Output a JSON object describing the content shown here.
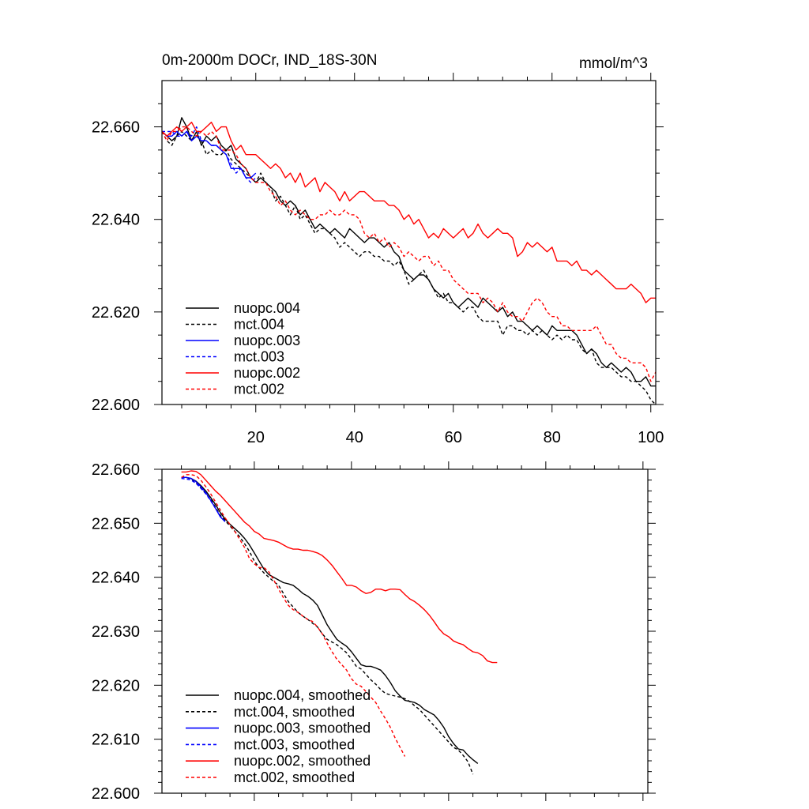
{
  "chart_data": [
    {
      "type": "line",
      "title": "0m-2000m DOCr, IND_18S-30N",
      "units": "mmol/m^3",
      "xlim": [
        1,
        101
      ],
      "ylim": [
        22.6,
        22.67
      ],
      "x_major_ticks": [
        20,
        40,
        60,
        80,
        100
      ],
      "x_minor_ticks": [
        5,
        10,
        15,
        25,
        30,
        35,
        45,
        50,
        55,
        65,
        70,
        75,
        85,
        90,
        95
      ],
      "xtick_labels": [
        "20",
        "40",
        "60",
        "80",
        "100"
      ],
      "y_major_ticks": [
        22.6,
        22.62,
        22.64,
        22.66
      ],
      "y_minor_ticks": [
        22.605,
        22.61,
        22.615,
        22.625,
        22.63,
        22.635,
        22.645,
        22.65,
        22.655,
        22.665
      ],
      "ytick_labels": [
        "22.600",
        "22.620",
        "22.640",
        "22.660"
      ],
      "legend_position": "bottom-left",
      "series": [
        {
          "name": "nuopc.004",
          "color": "#000000",
          "dash": "solid",
          "start": 1,
          "values": [
            22.659,
            22.658,
            22.657,
            22.658,
            22.662,
            22.66,
            22.657,
            22.659,
            22.656,
            22.658,
            22.657,
            22.658,
            22.656,
            22.655,
            22.656,
            22.653,
            22.652,
            22.651,
            22.649,
            22.648,
            22.649,
            22.648,
            22.647,
            22.646,
            22.644,
            22.643,
            22.644,
            22.643,
            22.641,
            22.642,
            22.64,
            22.638,
            22.639,
            22.638,
            22.637,
            22.638,
            22.637,
            22.636,
            22.638,
            22.637,
            22.636,
            22.635,
            22.636,
            22.636,
            22.635,
            22.634,
            22.635,
            22.633,
            22.632,
            22.629,
            22.628,
            22.627,
            22.628,
            22.628,
            22.627,
            22.625,
            22.624,
            22.623,
            22.624,
            22.622,
            22.621,
            22.622,
            22.623,
            22.622,
            22.621,
            22.623,
            22.622,
            22.621,
            22.62,
            22.621,
            22.619,
            22.62,
            22.618,
            22.618,
            22.617,
            22.616,
            22.617,
            22.616,
            22.615,
            22.617,
            22.616,
            22.616,
            22.616,
            22.616,
            22.615,
            22.613,
            22.611,
            22.612,
            22.611,
            22.609,
            22.608,
            22.609,
            22.608,
            22.607,
            22.608,
            22.607,
            22.605,
            22.605,
            22.606,
            22.604,
            22.604
          ]
        },
        {
          "name": "mct.004",
          "color": "#000000",
          "dash": "dashed",
          "start": 1,
          "values": [
            22.659,
            22.657,
            22.656,
            22.658,
            22.659,
            22.658,
            22.657,
            22.658,
            22.657,
            22.654,
            22.655,
            22.654,
            22.654,
            22.655,
            22.653,
            22.652,
            22.651,
            22.65,
            22.649,
            22.648,
            22.65,
            22.648,
            22.647,
            22.644,
            22.645,
            22.643,
            22.641,
            22.643,
            22.64,
            22.641,
            22.639,
            22.637,
            22.638,
            22.638,
            22.637,
            22.636,
            22.634,
            22.635,
            22.634,
            22.633,
            22.632,
            22.633,
            22.633,
            22.632,
            22.632,
            22.631,
            22.631,
            22.63,
            22.631,
            22.629,
            22.626,
            22.627,
            22.628,
            22.629,
            22.627,
            22.625,
            22.623,
            22.624,
            22.622,
            22.622,
            22.621,
            22.62,
            22.621,
            22.621,
            22.619,
            22.618,
            22.618,
            22.618,
            22.618,
            22.615,
            22.617,
            22.617,
            22.616,
            22.616,
            22.615,
            22.616,
            22.615,
            22.616,
            22.615,
            22.614,
            22.615,
            22.614,
            22.615,
            22.614,
            22.614,
            22.612,
            22.611,
            22.612,
            22.609,
            22.608,
            22.608,
            22.608,
            22.607,
            22.606,
            22.606,
            22.605,
            22.605,
            22.604,
            22.603,
            22.601,
            22.6
          ]
        },
        {
          "name": "nuopc.003",
          "color": "#0000ff",
          "dash": "solid",
          "start": 1,
          "values": [
            22.659,
            22.658,
            22.658,
            22.659,
            22.658,
            22.659,
            22.657,
            22.658,
            22.657,
            22.657,
            22.656,
            22.656,
            22.655,
            22.654,
            22.651,
            22.651,
            22.651,
            22.649,
            22.649,
            22.65
          ]
        },
        {
          "name": "mct.003",
          "color": "#0000ff",
          "dash": "dashed",
          "start": 1,
          "values": [
            22.659,
            22.659,
            22.659,
            22.658,
            22.658,
            22.659,
            22.658,
            22.66,
            22.657,
            22.657,
            22.656,
            22.656,
            22.655,
            22.654,
            22.652,
            22.65,
            22.651,
            22.649,
            22.648,
            22.649
          ]
        },
        {
          "name": "nuopc.002",
          "color": "#ff0000",
          "dash": "solid",
          "start": 1,
          "values": [
            22.659,
            22.658,
            22.659,
            22.66,
            22.659,
            22.66,
            22.661,
            22.659,
            22.659,
            22.66,
            22.661,
            22.659,
            22.66,
            22.66,
            22.657,
            22.655,
            22.656,
            22.654,
            22.654,
            22.654,
            22.653,
            22.652,
            22.651,
            22.652,
            22.651,
            22.649,
            22.65,
            22.648,
            22.65,
            22.647,
            22.648,
            22.649,
            22.646,
            22.648,
            22.647,
            22.646,
            22.644,
            22.646,
            22.644,
            22.645,
            22.646,
            22.646,
            22.645,
            22.644,
            22.644,
            22.644,
            22.643,
            22.643,
            22.642,
            22.64,
            22.641,
            22.639,
            22.64,
            22.638,
            22.636,
            22.637,
            22.636,
            22.638,
            22.637,
            22.636,
            22.637,
            22.638,
            22.636,
            22.637,
            22.639,
            22.637,
            22.636,
            22.637,
            22.638,
            22.637,
            22.637,
            22.636,
            22.632,
            22.633,
            22.635,
            22.634,
            22.635,
            22.634,
            22.633,
            22.634,
            22.631,
            22.631,
            22.631,
            22.63,
            22.631,
            22.629,
            22.629,
            22.628,
            22.629,
            22.628,
            22.627,
            22.626,
            22.625,
            22.625,
            22.625,
            22.626,
            22.625,
            22.624,
            22.622,
            22.623,
            22.623
          ]
        },
        {
          "name": "mct.002",
          "color": "#ff0000",
          "dash": "dashed",
          "start": 1,
          "values": [
            22.659,
            22.657,
            22.659,
            22.659,
            22.66,
            22.66,
            22.659,
            22.658,
            22.659,
            22.658,
            22.659,
            22.658,
            22.655,
            22.655,
            22.655,
            22.654,
            22.652,
            22.651,
            22.649,
            22.648,
            22.648,
            22.648,
            22.646,
            22.645,
            22.643,
            22.644,
            22.642,
            22.641,
            22.642,
            22.641,
            22.64,
            22.64,
            22.641,
            22.641,
            22.642,
            22.641,
            22.641,
            22.642,
            22.641,
            22.641,
            22.64,
            22.637,
            22.636,
            22.637,
            22.635,
            22.636,
            22.634,
            22.635,
            22.634,
            22.632,
            22.633,
            22.632,
            22.631,
            22.632,
            22.632,
            22.63,
            22.631,
            22.629,
            22.629,
            22.627,
            22.626,
            22.625,
            22.624,
            22.624,
            22.624,
            22.622,
            22.623,
            22.622,
            22.62,
            22.622,
            22.62,
            22.619,
            22.619,
            22.618,
            22.62,
            22.622,
            22.623,
            22.622,
            22.62,
            22.619,
            22.619,
            22.617,
            22.617,
            22.616,
            22.616,
            22.616,
            22.616,
            22.616,
            22.617,
            22.615,
            22.613,
            22.613,
            22.611,
            22.61,
            22.61,
            22.609,
            22.609,
            22.609,
            22.608,
            22.605,
            22.607
          ]
        }
      ]
    },
    {
      "type": "line",
      "xlim": [
        1,
        101
      ],
      "ylim": [
        22.6,
        22.66
      ],
      "x_major_ticks": [
        20,
        40,
        60,
        80,
        100
      ],
      "x_minor_ticks": [
        5,
        10,
        15,
        25,
        30,
        35,
        45,
        50,
        55,
        65,
        70,
        75,
        85,
        90,
        95
      ],
      "y_major_ticks": [
        22.6,
        22.61,
        22.62,
        22.63,
        22.64,
        22.65,
        22.66
      ],
      "y_minor_ticks": [
        22.602,
        22.604,
        22.606,
        22.608,
        22.612,
        22.614,
        22.616,
        22.618,
        22.622,
        22.624,
        22.626,
        22.628,
        22.632,
        22.634,
        22.636,
        22.638,
        22.642,
        22.644,
        22.646,
        22.648,
        22.652,
        22.654,
        22.656,
        22.658
      ],
      "ytick_labels": [
        "22.600",
        "22.610",
        "22.620",
        "22.630",
        "22.640",
        "22.650",
        "22.660"
      ],
      "legend_position": "bottom-left",
      "series": [
        {
          "name": "nuopc.004, smoothed",
          "color": "#000000",
          "dash": "solid",
          "start": 5,
          "values": [
            22.6585,
            22.6585,
            22.6583,
            22.6578,
            22.657,
            22.656,
            22.6548,
            22.6535,
            22.652,
            22.6508,
            22.6498,
            22.649,
            22.6482,
            22.6472,
            22.646,
            22.6445,
            22.643,
            22.6415,
            22.6405,
            22.64,
            22.6395,
            22.639,
            22.6388,
            22.6385,
            22.6378,
            22.637,
            22.6365,
            22.6358,
            22.6348,
            22.633,
            22.6312,
            22.6298,
            22.6285,
            22.6278,
            22.6272,
            22.6262,
            22.625,
            22.6238,
            22.6235,
            22.6235,
            22.6232,
            22.6228,
            22.6218,
            22.6205,
            22.619,
            22.618,
            22.6172,
            22.617,
            22.6168,
            22.6163,
            22.6155,
            22.615,
            22.6145,
            22.6135,
            22.6122,
            22.6105,
            22.6092,
            22.6082,
            22.608,
            22.607,
            22.6062,
            22.6055
          ]
        },
        {
          "name": "mct.004, smoothed",
          "color": "#000000",
          "dash": "dashed",
          "start": 5,
          "values": [
            22.6585,
            22.6585,
            22.6582,
            22.6575,
            22.6565,
            22.6555,
            22.6545,
            22.653,
            22.6515,
            22.6505,
            22.6495,
            22.6485,
            22.6475,
            22.6462,
            22.6448,
            22.643,
            22.6418,
            22.6408,
            22.64,
            22.6392,
            22.6385,
            22.637,
            22.6355,
            22.6345,
            22.6335,
            22.6328,
            22.6322,
            22.6315,
            22.6308,
            22.6295,
            22.6285,
            22.628,
            22.6275,
            22.6268,
            22.626,
            22.6248,
            22.6235,
            22.623,
            22.622,
            22.621,
            22.6202,
            22.6192,
            22.6185,
            22.6182,
            22.618,
            22.6178,
            22.6175,
            22.617,
            22.6162,
            22.6155,
            22.6145,
            22.6135,
            22.6125,
            22.6115,
            22.6105,
            22.6095,
            22.6085,
            22.608,
            22.607,
            22.6058,
            22.6035
          ]
        },
        {
          "name": "nuopc.003, smoothed",
          "color": "#0000ff",
          "dash": "solid",
          "start": 5,
          "values": [
            22.6585,
            22.6585,
            22.6583,
            22.6577,
            22.6568,
            22.6557,
            22.6543,
            22.6528,
            22.6512,
            22.6503
          ]
        },
        {
          "name": "mct.003, smoothed",
          "color": "#0000ff",
          "dash": "dashed",
          "start": 5,
          "values": [
            22.6583,
            22.6582,
            22.658,
            22.6574,
            22.6565,
            22.6555,
            22.6542,
            22.6528,
            22.6513,
            22.6503
          ]
        },
        {
          "name": "nuopc.002, smoothed",
          "color": "#ff0000",
          "dash": "solid",
          "start": 5,
          "values": [
            22.6595,
            22.6595,
            22.6597,
            22.6596,
            22.659,
            22.658,
            22.657,
            22.656,
            22.6552,
            22.6542,
            22.6532,
            22.6522,
            22.6512,
            22.6502,
            22.6495,
            22.6485,
            22.648,
            22.6472,
            22.647,
            22.6468,
            22.6465,
            22.646,
            22.6455,
            22.6452,
            22.6452,
            22.645,
            22.645,
            22.6448,
            22.6445,
            22.644,
            22.6432,
            22.6422,
            22.641,
            22.6398,
            22.6385,
            22.6385,
            22.6382,
            22.6375,
            22.637,
            22.6372,
            22.6378,
            22.6378,
            22.6375,
            22.6378,
            22.6378,
            22.6377,
            22.6368,
            22.636,
            22.6355,
            22.6348,
            22.634,
            22.633,
            22.6318,
            22.6305,
            22.6295,
            22.629,
            22.6282,
            22.6278,
            22.6275,
            22.6268,
            22.6262,
            22.626,
            22.6255,
            22.6245,
            22.6242,
            22.6242
          ]
        },
        {
          "name": "mct.002, smoothed",
          "color": "#ff0000",
          "dash": "dashed",
          "start": 5,
          "values": [
            22.6585,
            22.659,
            22.659,
            22.6588,
            22.658,
            22.6568,
            22.6555,
            22.654,
            22.6525,
            22.651,
            22.6498,
            22.6485,
            22.647,
            22.6455,
            22.6435,
            22.6425,
            22.6418,
            22.6418,
            22.641,
            22.6395,
            22.6378,
            22.6362,
            22.6348,
            22.634,
            22.6335,
            22.6328,
            22.6322,
            22.6318,
            22.6308,
            22.6295,
            22.6278,
            22.6262,
            22.6248,
            22.6238,
            22.6228,
            22.6212,
            22.6202,
            22.6198,
            22.6188,
            22.6178,
            22.6168,
            22.6152,
            22.6138,
            22.6122,
            22.6102,
            22.6085,
            22.6068
          ]
        }
      ]
    }
  ]
}
